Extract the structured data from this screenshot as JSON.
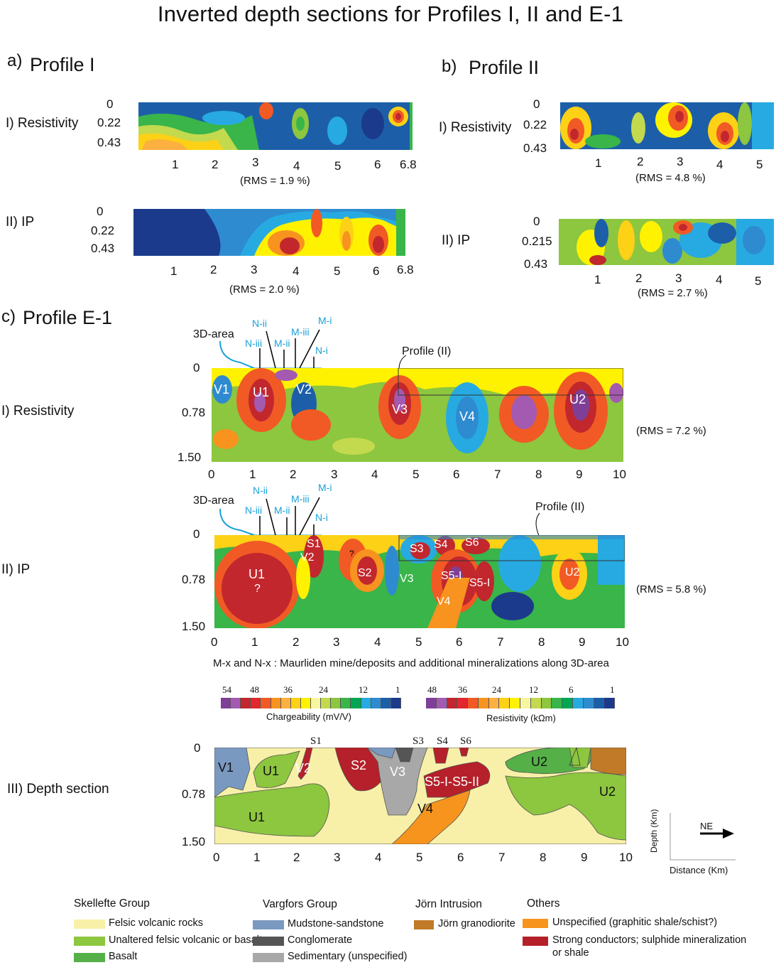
{
  "title": "Inverted depth sections for Profiles I, II and E-1",
  "panel_a": {
    "letter": "a)",
    "name": "Profile I",
    "res_label": "I)  Resistivity",
    "ip_label": "II) IP",
    "depth_ticks": [
      "0",
      "0.22",
      "0.43"
    ],
    "x_ticks": [
      "1",
      "2",
      "3",
      "4",
      "5",
      "6",
      "6.8"
    ],
    "res_rms": "(RMS = 1.9 %)",
    "ip_rms": "(RMS = 2.0 %)"
  },
  "panel_b": {
    "letter": "b)",
    "name": "Profile II",
    "res_label": "I) Resistivity",
    "ip_label": "II) IP",
    "res_depth_ticks": [
      "0",
      "0.22",
      "0.43"
    ],
    "ip_depth_ticks": [
      "0",
      "0.215",
      "0.43"
    ],
    "x_ticks": [
      "1",
      "2",
      "3",
      "4",
      "5"
    ],
    "res_rms": "(RMS = 4.8 %)",
    "ip_rms": "(RMS = 2.7 %)"
  },
  "panel_c": {
    "letter": "c)",
    "name": "Profile E-1",
    "res_label": "I) Resistivity",
    "ip_label": "II) IP",
    "depth_label": "III)  Depth section",
    "depth_ticks": [
      "0",
      "0.78",
      "1.50"
    ],
    "x_ticks": [
      "0",
      "1",
      "2",
      "3",
      "4",
      "5",
      "6",
      "7",
      "8",
      "9",
      "10"
    ],
    "res_rms": "(RMS = 7.2 %)",
    "ip_rms": "(RMS = 5.8 %)",
    "area_label": "3D-area",
    "deposit_labels": [
      "N-ii",
      "N-iii",
      "M-ii",
      "M-iii",
      "M-i",
      "N-i"
    ],
    "profile_ii_label": "Profile (II)",
    "res_units": [
      "V1",
      "U1",
      "V2",
      "V3",
      "V4",
      "U2"
    ],
    "ip_units": [
      "S1",
      "U1",
      "?",
      "V2",
      "?",
      "S2",
      "S3",
      "S4",
      "S6",
      "V3",
      "S5-I",
      "S5-I",
      "V4",
      "U2"
    ],
    "depth_units": [
      "V1",
      "U1",
      "V2",
      "U1",
      "S2",
      "V3",
      "S5-I-S5-II",
      "V4",
      "U2",
      "U2"
    ],
    "depth_top_labels": [
      "S1",
      "S3",
      "S4",
      "S6"
    ],
    "footnote": "M-x and N-x : Maurliden mine/deposits and additional mineralizations along 3D-area",
    "axes_depth": "Depth (Km)",
    "axes_distance": "Distance (Km)",
    "north_arrow": "NE"
  },
  "colorbars": {
    "chargeability": {
      "ticks": [
        "54",
        "48",
        "36",
        "24",
        "12",
        "1"
      ],
      "label": "Chargeability (mV/V)",
      "colors": [
        "#7f3f98",
        "#a35ab0",
        "#c1272d",
        "#e0282e",
        "#f15a24",
        "#f7931e",
        "#fbb040",
        "#fcd116",
        "#fff200",
        "#f8f5a0",
        "#c3d94e",
        "#8dc63f",
        "#39b54a",
        "#00a651",
        "#27aae1",
        "#2e8bd0",
        "#1c5fa8",
        "#1b3a8c"
      ]
    },
    "resistivity": {
      "ticks": [
        "48",
        "36",
        "24",
        "12",
        "6",
        "1"
      ],
      "label": "Resistivity (kΩm)",
      "colors": [
        "#7f3f98",
        "#a35ab0",
        "#c1272d",
        "#e0282e",
        "#f15a24",
        "#f7931e",
        "#fbb040",
        "#fcd116",
        "#fff200",
        "#f8f5a0",
        "#c3d94e",
        "#8dc63f",
        "#39b54a",
        "#00a651",
        "#27aae1",
        "#2e8bd0",
        "#1c5fa8",
        "#1b3a8c"
      ]
    }
  },
  "legend": {
    "groups": [
      {
        "heading": "Skellefte Group",
        "items": [
          {
            "label": "Felsic volcanic rocks",
            "color": "#f8f0a8"
          },
          {
            "label": "Unaltered felsic volcanic or basalt",
            "color": "#8dc63f"
          },
          {
            "label": "Basalt",
            "color": "#55b048"
          }
        ]
      },
      {
        "heading": "Vargfors Group",
        "items": [
          {
            "label": "Mudstone-sandstone",
            "color": "#7a99c0"
          },
          {
            "label": "Conglomerate",
            "color": "#555555"
          },
          {
            "label": "Sedimentary (unspecified)",
            "color": "#a8a8a8"
          }
        ]
      },
      {
        "heading": "Jörn Intrusion",
        "items": [
          {
            "label": "Jörn granodiorite",
            "color": "#c07a28"
          }
        ]
      },
      {
        "heading": "Others",
        "items": [
          {
            "label": "Unspecified (graphitic shale/schist?)",
            "color": "#f7941d"
          },
          {
            "label": "Strong conductors; sulphide mineralization",
            "color": "#b5202a"
          },
          {
            "label": "or shale",
            "color": ""
          }
        ]
      }
    ]
  }
}
